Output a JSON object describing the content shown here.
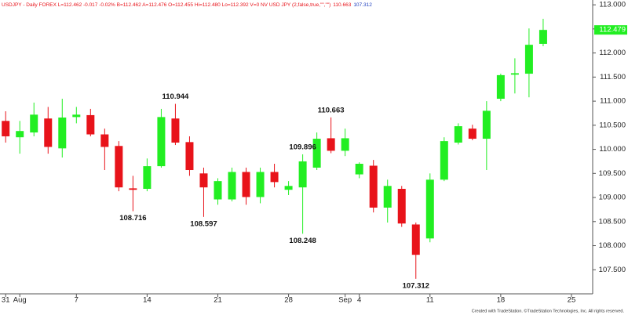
{
  "chart_data": {
    "type": "candlestick",
    "header": [
      {
        "text": "USDJPY - Daily FOREX L=112.462 -0.017 -0.02% B=112.462 A=112.476 O=112.455 Hi=112.480 Lo=112.392 V=0 NV USD JPY (2,false,true,\"\",\"\")",
        "color": "#e8131a"
      },
      {
        "text": "110.663",
        "color": "#e8131a"
      },
      {
        "text": "107.312",
        "color": "#1f3fbf"
      }
    ],
    "footer": "Created with TradeStation. ©TradeStation Technologies, Inc. All rights reserved.",
    "up_color": "#22ee22",
    "down_color": "#e8131a",
    "open": [
      110.59,
      110.25,
      110.35,
      110.64,
      110.02,
      110.67,
      110.71,
      110.31,
      110.07,
      109.19,
      109.18,
      109.65,
      110.64,
      110.15,
      109.5,
      108.96,
      108.96,
      109.53,
      109.01,
      109.53,
      109.16,
      109.21,
      109.62,
      110.23,
      109.97,
      109.48,
      109.66,
      108.79,
      109.18,
      108.44,
      108.15,
      109.37,
      110.14,
      110.43,
      110.22,
      111.05,
      111.55,
      111.57,
      112.19
    ],
    "high": [
      110.79,
      110.59,
      110.97,
      110.88,
      111.05,
      110.88,
      110.84,
      110.43,
      110.17,
      109.45,
      109.81,
      110.84,
      110.944,
      110.27,
      109.62,
      109.4,
      109.62,
      109.62,
      109.62,
      109.7,
      109.34,
      109.896,
      110.35,
      110.663,
      110.43,
      109.73,
      109.78,
      109.37,
      109.24,
      108.48,
      109.5,
      110.25,
      110.54,
      110.51,
      111.0,
      111.57,
      111.89,
      112.51,
      112.71
    ],
    "low": [
      110.14,
      109.91,
      110.27,
      109.91,
      109.83,
      110.54,
      110.27,
      109.57,
      109.13,
      108.716,
      109.13,
      109.62,
      110.09,
      109.45,
      108.597,
      108.85,
      108.92,
      108.85,
      108.88,
      109.21,
      109.05,
      108.248,
      109.57,
      109.92,
      109.86,
      109.4,
      108.69,
      108.48,
      108.39,
      107.312,
      108.07,
      109.34,
      110.1,
      110.19,
      109.57,
      111.0,
      111.16,
      111.08,
      112.14
    ],
    "close": [
      110.27,
      110.38,
      110.72,
      110.05,
      110.66,
      110.72,
      110.31,
      110.05,
      109.21,
      109.16,
      109.65,
      110.67,
      110.14,
      109.57,
      109.21,
      109.34,
      109.53,
      109.01,
      109.53,
      109.32,
      109.24,
      109.75,
      110.22,
      109.97,
      110.23,
      109.7,
      108.79,
      109.24,
      108.46,
      107.81,
      109.37,
      110.17,
      110.48,
      110.22,
      110.8,
      111.54,
      111.58,
      112.17,
      112.479
    ],
    "annotations": [
      110.944,
      108.716,
      108.597,
      109.896,
      108.248,
      110.663,
      107.312
    ],
    "last_price": 112.479,
    "ylim": [
      107.0,
      113.1
    ],
    "yticks": [
      {
        "value": 107.5,
        "label": "107.500"
      },
      {
        "value": 108,
        "label": "108.000"
      },
      {
        "value": 108.5,
        "label": "108.500"
      },
      {
        "value": 109,
        "label": "109.000"
      },
      {
        "value": 109.5,
        "label": "109.500"
      },
      {
        "value": 110,
        "label": "110.000"
      },
      {
        "value": 110.5,
        "label": "110.500"
      },
      {
        "value": 111,
        "label": "111.000"
      },
      {
        "value": 111.5,
        "label": "111.500"
      },
      {
        "value": 112,
        "label": "112.000"
      },
      {
        "value": 112.5,
        "label": "112.500"
      },
      {
        "value": 113,
        "label": "113.000"
      }
    ],
    "xlim": [
      -0.4,
      41.5
    ],
    "xticks": [
      {
        "value": 0,
        "label": "31"
      },
      {
        "value": 1,
        "label": "Aug"
      },
      {
        "value": 5,
        "label": "7"
      },
      {
        "value": 10,
        "label": "14"
      },
      {
        "value": 15,
        "label": "21"
      },
      {
        "value": 20,
        "label": "28"
      },
      {
        "value": 24,
        "label": "Sep"
      },
      {
        "value": 25,
        "label": "4"
      },
      {
        "value": 30,
        "label": "11"
      },
      {
        "value": 35,
        "label": "18"
      },
      {
        "value": 40,
        "label": "25"
      }
    ]
  }
}
